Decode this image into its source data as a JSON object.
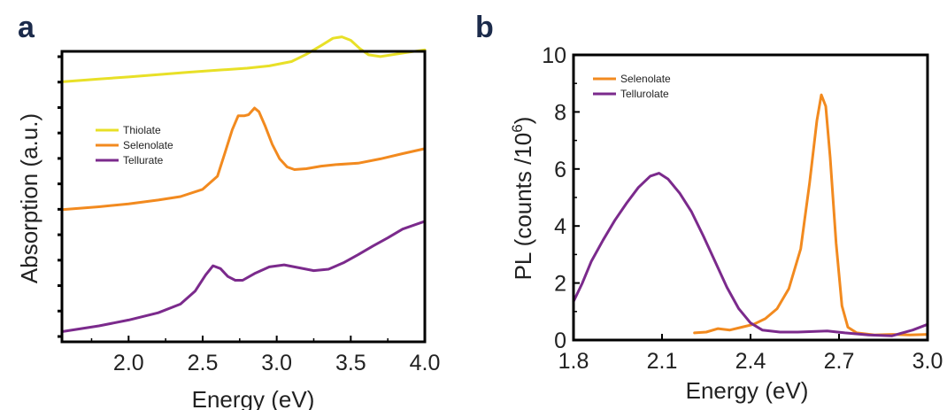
{
  "colors": {
    "yellow": "#e8e027",
    "orange": "#f28a1f",
    "purple": "#7b2a8c"
  },
  "chart_data": [
    {
      "panel": "a",
      "type": "line",
      "title": "",
      "xlabel": "Energy (eV)",
      "ylabel": "Absorption (a.u.)",
      "xlim": [
        1.55,
        4.0
      ],
      "ylim": [
        0,
        10
      ],
      "xticks": [
        "2.0",
        "2.5",
        "3.0",
        "3.5",
        "4.0"
      ],
      "xtick_values": [
        2.0,
        2.5,
        3.0,
        3.5,
        4.0
      ],
      "yticks_labeled": false,
      "legend": "upper-left",
      "series": [
        {
          "name": "Thiolate",
          "color": "#e8e027",
          "points": [
            [
              1.55,
              8.95
            ],
            [
              1.8,
              9.05
            ],
            [
              2.0,
              9.12
            ],
            [
              2.2,
              9.2
            ],
            [
              2.4,
              9.28
            ],
            [
              2.6,
              9.35
            ],
            [
              2.8,
              9.42
            ],
            [
              2.95,
              9.5
            ],
            [
              3.1,
              9.65
            ],
            [
              3.2,
              9.9
            ],
            [
              3.3,
              10.2
            ],
            [
              3.38,
              10.45
            ],
            [
              3.44,
              10.5
            ],
            [
              3.5,
              10.38
            ],
            [
              3.56,
              10.1
            ],
            [
              3.62,
              9.88
            ],
            [
              3.7,
              9.82
            ],
            [
              3.8,
              9.9
            ],
            [
              3.9,
              9.98
            ],
            [
              4.0,
              10.05
            ]
          ]
        },
        {
          "name": "Selenolate",
          "color": "#f28a1f",
          "points": [
            [
              1.55,
              4.55
            ],
            [
              1.8,
              4.65
            ],
            [
              2.0,
              4.75
            ],
            [
              2.2,
              4.88
            ],
            [
              2.35,
              5.0
            ],
            [
              2.5,
              5.25
            ],
            [
              2.6,
              5.7
            ],
            [
              2.65,
              6.5
            ],
            [
              2.7,
              7.3
            ],
            [
              2.74,
              7.78
            ],
            [
              2.78,
              7.78
            ],
            [
              2.81,
              7.82
            ],
            [
              2.85,
              8.05
            ],
            [
              2.88,
              7.92
            ],
            [
              2.92,
              7.45
            ],
            [
              2.97,
              6.8
            ],
            [
              3.02,
              6.3
            ],
            [
              3.07,
              6.02
            ],
            [
              3.12,
              5.93
            ],
            [
              3.2,
              5.96
            ],
            [
              3.3,
              6.05
            ],
            [
              3.4,
              6.1
            ],
            [
              3.55,
              6.15
            ],
            [
              3.7,
              6.3
            ],
            [
              3.85,
              6.48
            ],
            [
              4.0,
              6.65
            ]
          ]
        },
        {
          "name": "Tellurate",
          "color": "#7b2a8c",
          "points": [
            [
              1.55,
              0.35
            ],
            [
              1.8,
              0.55
            ],
            [
              2.0,
              0.75
            ],
            [
              2.2,
              1.0
            ],
            [
              2.35,
              1.3
            ],
            [
              2.45,
              1.75
            ],
            [
              2.52,
              2.3
            ],
            [
              2.57,
              2.62
            ],
            [
              2.62,
              2.52
            ],
            [
              2.67,
              2.25
            ],
            [
              2.72,
              2.12
            ],
            [
              2.77,
              2.12
            ],
            [
              2.85,
              2.35
            ],
            [
              2.95,
              2.58
            ],
            [
              3.05,
              2.65
            ],
            [
              3.15,
              2.55
            ],
            [
              3.25,
              2.45
            ],
            [
              3.35,
              2.5
            ],
            [
              3.45,
              2.72
            ],
            [
              3.55,
              3.0
            ],
            [
              3.65,
              3.3
            ],
            [
              3.75,
              3.58
            ],
            [
              3.85,
              3.88
            ],
            [
              4.0,
              4.15
            ]
          ]
        }
      ]
    },
    {
      "panel": "b",
      "type": "line",
      "title": "",
      "xlabel": "Energy (eV)",
      "ylabel": "PL (counts /10",
      "ylabel_superscript": "6",
      "ylabel_suffix": ")",
      "xlim": [
        1.8,
        3.0
      ],
      "ylim": [
        0,
        10
      ],
      "xticks": [
        "1.8",
        "2.1",
        "2.4",
        "2.7",
        "3.0"
      ],
      "xtick_values": [
        1.8,
        2.1,
        2.4,
        2.7,
        3.0
      ],
      "yticks": [
        "0",
        "2",
        "4",
        "6",
        "8",
        "10"
      ],
      "ytick_values": [
        0,
        2,
        4,
        6,
        8,
        10
      ],
      "legend": "upper-left",
      "series": [
        {
          "name": "Selenolate",
          "color": "#f28a1f",
          "points": [
            [
              2.21,
              0.25
            ],
            [
              2.25,
              0.28
            ],
            [
              2.29,
              0.4
            ],
            [
              2.33,
              0.35
            ],
            [
              2.37,
              0.45
            ],
            [
              2.41,
              0.55
            ],
            [
              2.45,
              0.75
            ],
            [
              2.49,
              1.1
            ],
            [
              2.53,
              1.8
            ],
            [
              2.57,
              3.2
            ],
            [
              2.6,
              5.5
            ],
            [
              2.625,
              7.7
            ],
            [
              2.64,
              8.6
            ],
            [
              2.655,
              8.2
            ],
            [
              2.67,
              6.4
            ],
            [
              2.69,
              3.4
            ],
            [
              2.71,
              1.2
            ],
            [
              2.73,
              0.45
            ],
            [
              2.76,
              0.25
            ],
            [
              2.82,
              0.18
            ],
            [
              2.88,
              0.2
            ],
            [
              2.94,
              0.18
            ],
            [
              3.0,
              0.2
            ]
          ]
        },
        {
          "name": "Tellurolate",
          "color": "#7b2a8c",
          "points": [
            [
              1.8,
              1.35
            ],
            [
              1.83,
              2.0
            ],
            [
              1.86,
              2.75
            ],
            [
              1.9,
              3.5
            ],
            [
              1.94,
              4.2
            ],
            [
              1.98,
              4.8
            ],
            [
              2.02,
              5.35
            ],
            [
              2.06,
              5.75
            ],
            [
              2.09,
              5.85
            ],
            [
              2.12,
              5.65
            ],
            [
              2.16,
              5.15
            ],
            [
              2.2,
              4.5
            ],
            [
              2.24,
              3.65
            ],
            [
              2.28,
              2.75
            ],
            [
              2.32,
              1.85
            ],
            [
              2.36,
              1.1
            ],
            [
              2.4,
              0.6
            ],
            [
              2.44,
              0.35
            ],
            [
              2.5,
              0.28
            ],
            [
              2.56,
              0.28
            ],
            [
              2.62,
              0.3
            ],
            [
              2.66,
              0.32
            ],
            [
              2.72,
              0.25
            ],
            [
              2.8,
              0.18
            ],
            [
              2.88,
              0.15
            ],
            [
              2.95,
              0.35
            ],
            [
              3.0,
              0.55
            ]
          ]
        }
      ]
    }
  ],
  "panels": {
    "a": {
      "letter": "a"
    },
    "b": {
      "letter": "b"
    }
  }
}
